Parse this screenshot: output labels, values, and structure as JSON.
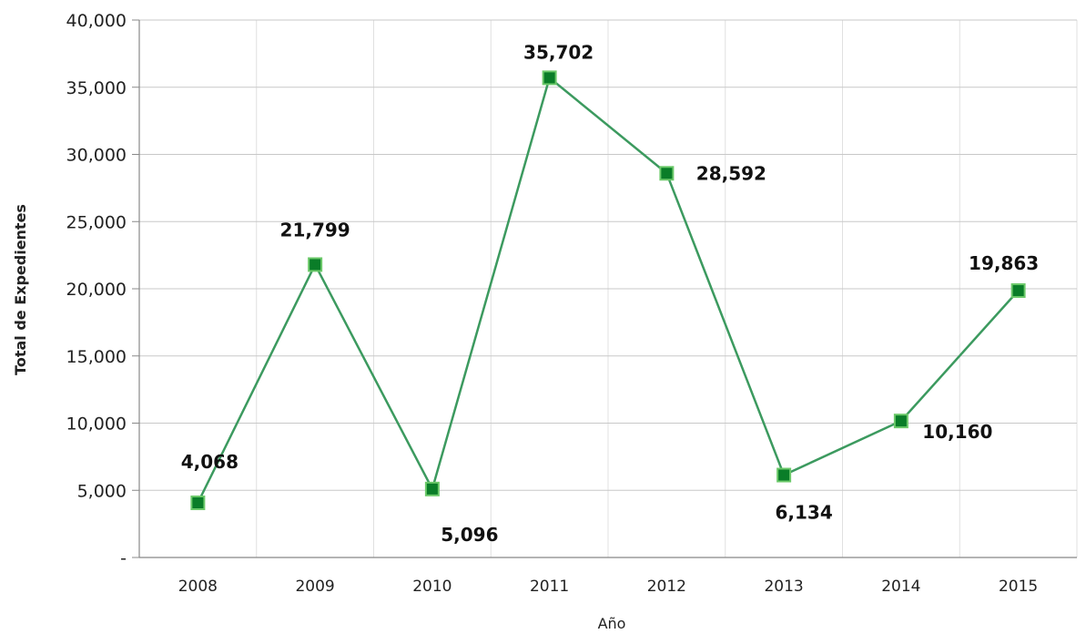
{
  "chart_data": {
    "type": "line",
    "title": "",
    "xlabel": "Año",
    "ylabel": "Total de Expedientes",
    "categories": [
      "2008",
      "2009",
      "2010",
      "2011",
      "2012",
      "2013",
      "2014",
      "2015"
    ],
    "series": [
      {
        "values": [
          4068,
          21799,
          5096,
          35702,
          28592,
          6134,
          10160,
          19863
        ]
      }
    ],
    "data_labels": [
      "4,068",
      "21,799",
      "5,096",
      "35,702",
      "28,592",
      "6,134",
      "10,160",
      "19,863"
    ],
    "y_ticks": [
      0,
      5000,
      10000,
      15000,
      20000,
      25000,
      30000,
      35000,
      40000
    ],
    "y_tick_labels": [
      "-",
      "5,000",
      "10,000",
      "15,000",
      "20,000",
      "25,000",
      "30,000",
      "35,000",
      "40,000"
    ],
    "ylim": [
      0,
      40000
    ],
    "grid": true,
    "legend": "none",
    "colors": {
      "line": "#3c9a5f",
      "marker": "#0a7d28",
      "marker_border": "#6cc96a",
      "grid_h": "#c8c8c8",
      "grid_v": "#e0e0e0",
      "axis": "#888888"
    }
  }
}
